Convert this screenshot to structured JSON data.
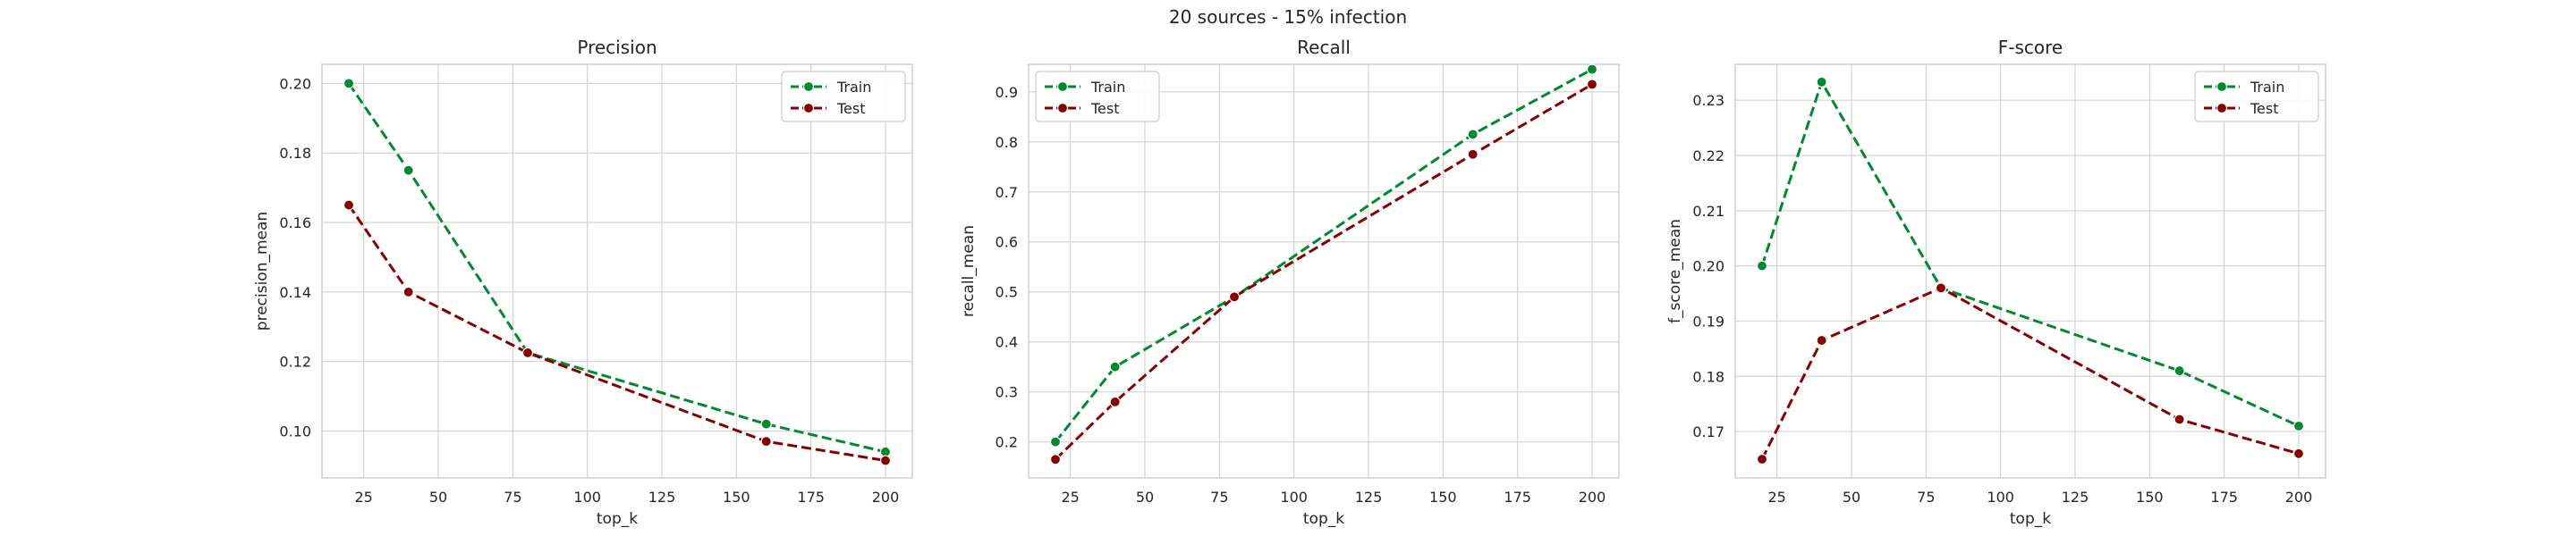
{
  "figure": {
    "suptitle": "20 sources - 15% infection"
  },
  "colors": {
    "train": "#00892e",
    "test": "#870000",
    "grid": "#d4d4d4",
    "frame": "#cfcfcf",
    "text": "#262626"
  },
  "chart_data": [
    {
      "type": "line",
      "title": "Precision",
      "xlabel": "top_k",
      "ylabel": "precision_mean",
      "xlim": [
        11,
        209
      ],
      "ylim": [
        0.0865,
        0.2055
      ],
      "xticks": [
        25,
        50,
        75,
        100,
        125,
        150,
        175,
        200
      ],
      "yticks": [
        0.1,
        0.12,
        0.14,
        0.16,
        0.18,
        0.2
      ],
      "ytick_labels": [
        "0.10",
        "0.12",
        "0.14",
        "0.16",
        "0.18",
        "0.20"
      ],
      "legend_position": "top-right",
      "grid": true,
      "x": [
        20,
        40,
        80,
        160,
        200
      ],
      "series": [
        {
          "name": "Train",
          "values": [
            0.2,
            0.175,
            0.1225,
            0.102,
            0.094
          ]
        },
        {
          "name": "Test",
          "values": [
            0.165,
            0.14,
            0.1225,
            0.097,
            0.0915
          ]
        }
      ]
    },
    {
      "type": "line",
      "title": "Recall",
      "xlabel": "top_k",
      "ylabel": "recall_mean",
      "xlim": [
        11,
        209
      ],
      "ylim": [
        0.128,
        0.955
      ],
      "xticks": [
        25,
        50,
        75,
        100,
        125,
        150,
        175,
        200
      ],
      "yticks": [
        0.2,
        0.3,
        0.4,
        0.5,
        0.6,
        0.7,
        0.8,
        0.9
      ],
      "ytick_labels": [
        "0.2",
        "0.3",
        "0.4",
        "0.5",
        "0.6",
        "0.7",
        "0.8",
        "0.9"
      ],
      "legend_position": "top-left",
      "grid": true,
      "x": [
        20,
        40,
        80,
        160,
        200
      ],
      "series": [
        {
          "name": "Train",
          "values": [
            0.2,
            0.35,
            0.49,
            0.815,
            0.945
          ]
        },
        {
          "name": "Test",
          "values": [
            0.165,
            0.28,
            0.49,
            0.775,
            0.915
          ]
        }
      ]
    },
    {
      "type": "line",
      "title": "F-score",
      "xlabel": "top_k",
      "ylabel": "f_score_mean",
      "xlim": [
        11,
        209
      ],
      "ylim": [
        0.1616,
        0.2365
      ],
      "xticks": [
        25,
        50,
        75,
        100,
        125,
        150,
        175,
        200
      ],
      "yticks": [
        0.17,
        0.18,
        0.19,
        0.2,
        0.21,
        0.22,
        0.23
      ],
      "ytick_labels": [
        "0.17",
        "0.18",
        "0.19",
        "0.20",
        "0.21",
        "0.22",
        "0.23"
      ],
      "legend_position": "top-right",
      "grid": true,
      "x": [
        20,
        40,
        80,
        160,
        200
      ],
      "series": [
        {
          "name": "Train",
          "values": [
            0.2,
            0.2333,
            0.196,
            0.181,
            0.171
          ]
        },
        {
          "name": "Test",
          "values": [
            0.165,
            0.1865,
            0.196,
            0.1722,
            0.166
          ]
        }
      ]
    }
  ]
}
